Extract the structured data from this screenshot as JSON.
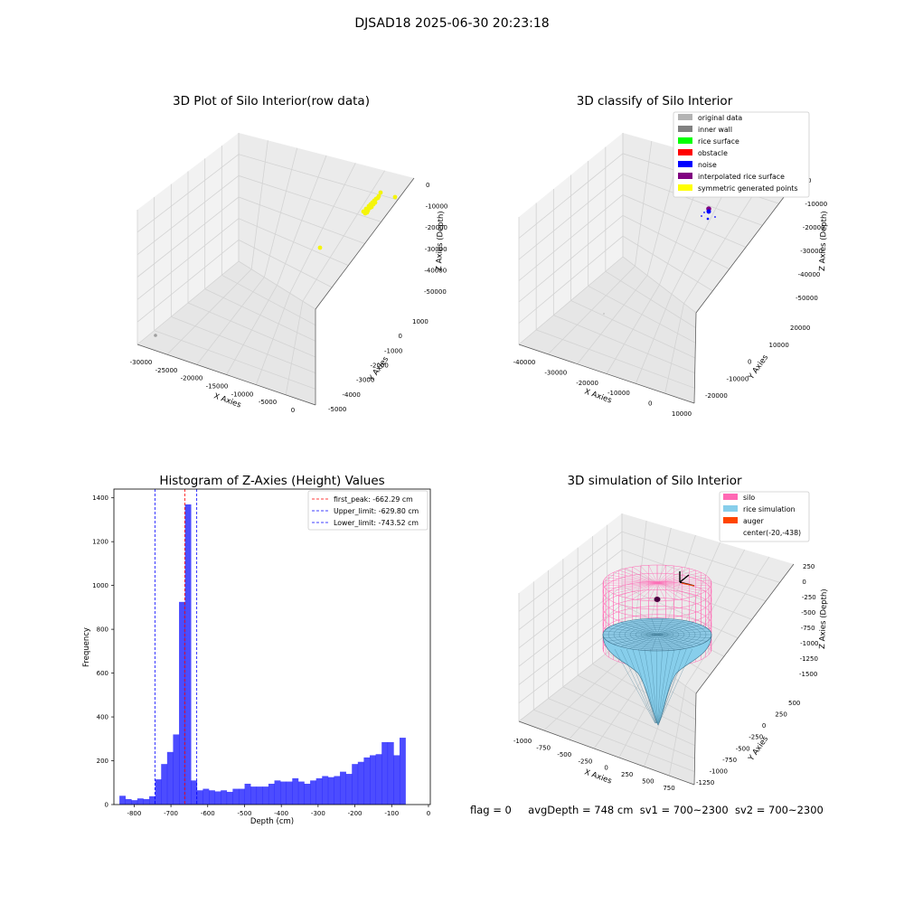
{
  "suptitle": "DJSAD18 2025-06-30 20:23:18",
  "footer": {
    "flag": "flag = 0",
    "avg": "avgDepth = 748 cm",
    "sv1": "sv1 = 700~2300",
    "sv2": "sv2 = 700~2300"
  },
  "chart_data": [
    {
      "type": "scatter3d",
      "title": "3D Plot of Silo Interior(row data)",
      "xlabel": "X Axies",
      "ylabel": "Y Axies",
      "zlabel": "Z Axies (Depth)",
      "xticks": [
        "-30000",
        "-25000",
        "-20000",
        "-15000",
        "-10000",
        "-5000",
        "0"
      ],
      "yticks": [
        "1000",
        "0",
        "-1000",
        "-2000",
        "-3000",
        "-4000",
        "-5000"
      ],
      "zticks": [
        "0",
        "-10000",
        "-20000",
        "-30000",
        "-40000",
        "-50000"
      ],
      "points_color": "#f5f50a",
      "points": [
        [
          -3000,
          -2500,
          -8000
        ],
        [
          -2500,
          -2000,
          -10000
        ],
        [
          -3500,
          -3000,
          -12000
        ],
        [
          -2000,
          -1500,
          -7500
        ],
        [
          -4000,
          -3500,
          -14000
        ],
        [
          -1500,
          -1000,
          -6500
        ],
        [
          -5000,
          -4000,
          -30000
        ],
        [
          -29000,
          -4800,
          -53000
        ]
      ]
    },
    {
      "type": "scatter3d",
      "title": "3D classify of Silo Interior",
      "xlabel": "X Axies",
      "ylabel": "Y Axies",
      "zlabel": "Z Axies (Depth)",
      "xticks": [
        "-40000",
        "-30000",
        "-20000",
        "-10000",
        "0",
        "10000"
      ],
      "yticks": [
        "20000",
        "10000",
        "0",
        "-10000",
        "-20000"
      ],
      "zticks": [
        "0",
        "-10000",
        "-20000",
        "-30000",
        "-40000",
        "-50000"
      ],
      "legend": [
        {
          "label": "original data",
          "color": "#b3b3b3"
        },
        {
          "label": "inner wall",
          "color": "#808080"
        },
        {
          "label": "rice surface",
          "color": "#00ff00"
        },
        {
          "label": "obstacle",
          "color": "#ff0000"
        },
        {
          "label": "noise",
          "color": "#0000ff"
        },
        {
          "label": "interpolated rice surface",
          "color": "#800080"
        },
        {
          "label": "symmetric generated points",
          "color": "#ffff00"
        }
      ]
    },
    {
      "type": "bar",
      "title": "Histogram of Z-Axies (Height) Values",
      "xlabel": "Depth (cm)",
      "ylabel": "Frequency",
      "xlim": [
        -855,
        5
      ],
      "ylim": [
        0,
        1440
      ],
      "xticks": [
        -800,
        -700,
        -600,
        -500,
        -400,
        -300,
        -200,
        -100,
        0
      ],
      "yticks": [
        0,
        200,
        400,
        600,
        800,
        1000,
        1200,
        1400
      ],
      "bin_start": -840,
      "bin_width": 16.2,
      "values": [
        40,
        25,
        20,
        28,
        25,
        38,
        115,
        185,
        240,
        320,
        925,
        1370,
        110,
        65,
        72,
        65,
        60,
        65,
        58,
        72,
        72,
        95,
        82,
        82,
        82,
        95,
        110,
        105,
        105,
        120,
        105,
        95,
        110,
        120,
        130,
        125,
        130,
        150,
        140,
        185,
        195,
        215,
        225,
        230,
        285,
        285,
        225,
        305
      ],
      "bar_color": "#0000ff",
      "vlines": [
        {
          "label": "first_peak: -662.29 cm",
          "x": -662.29,
          "color": "#ff0000"
        },
        {
          "label": "Upper_limit: -629.80 cm",
          "x": -629.8,
          "color": "#0000ff"
        },
        {
          "label": "Lower_limit: -743.52 cm",
          "x": -743.52,
          "color": "#0000ff"
        }
      ]
    },
    {
      "type": "surface3d",
      "title": "3D simulation of Silo Interior",
      "xlabel": "X Axies",
      "ylabel": "Y Axies",
      "zlabel": "Z Axies (Depth)",
      "xticks": [
        "-1000",
        "-750",
        "-500",
        "-250",
        "0",
        "250",
        "500",
        "750"
      ],
      "yticks": [
        "500",
        "250",
        "0",
        "-250",
        "-500",
        "-750",
        "-1000",
        "-1250"
      ],
      "zticks": [
        "250",
        "0",
        "-250",
        "-500",
        "-750",
        "-1000",
        "-1250",
        "-1500"
      ],
      "legend": [
        {
          "label": "silo",
          "color": "#ff69b4"
        },
        {
          "label": "rice simulation",
          "color": "#87ceeb"
        },
        {
          "label": "auger",
          "color": "#ff4500"
        },
        {
          "label": "center(-20,-438)",
          "color": ""
        }
      ]
    }
  ]
}
